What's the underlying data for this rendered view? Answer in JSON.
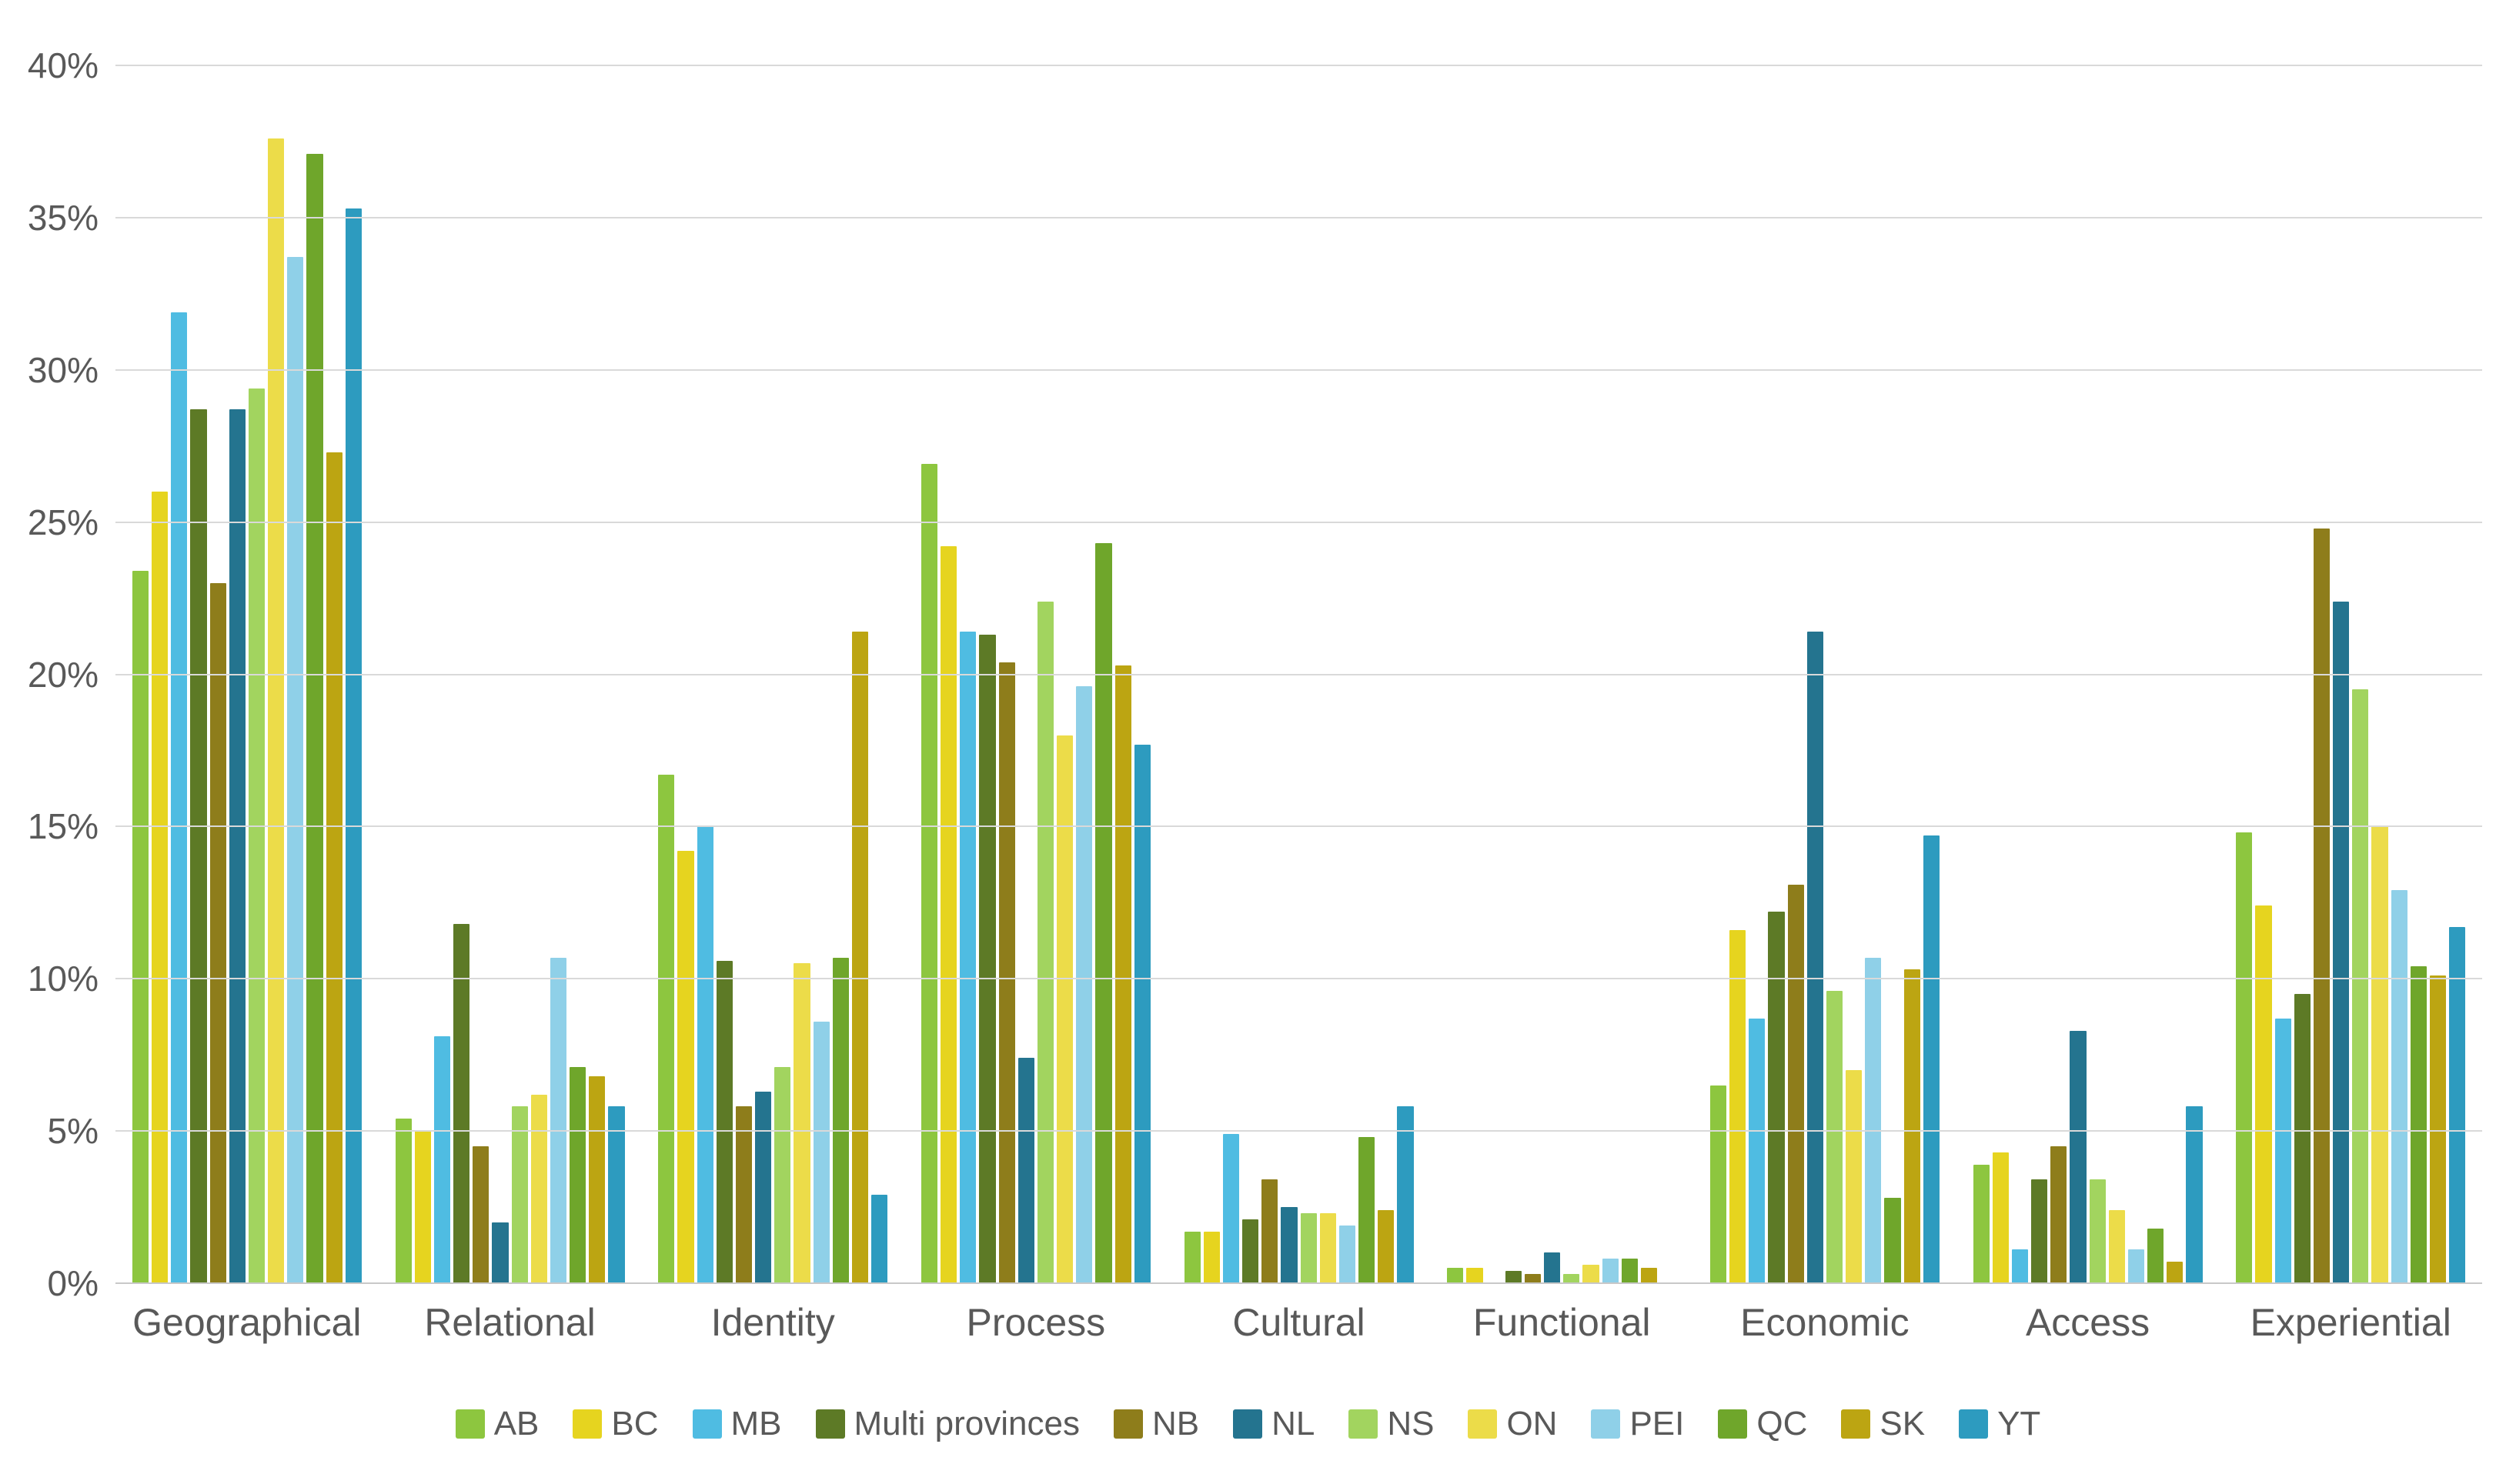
{
  "chart_data": {
    "type": "bar",
    "title": "",
    "xlabel": "",
    "ylabel": "",
    "ylim": [
      0,
      40
    ],
    "grid": true,
    "legend_position": "bottom",
    "y_ticks": [
      {
        "value": 0,
        "label": "0%"
      },
      {
        "value": 5,
        "label": "5%"
      },
      {
        "value": 10,
        "label": "10%"
      },
      {
        "value": 15,
        "label": "15%"
      },
      {
        "value": 20,
        "label": "20%"
      },
      {
        "value": 25,
        "label": "25%"
      },
      {
        "value": 30,
        "label": "30%"
      },
      {
        "value": 35,
        "label": "35%"
      },
      {
        "value": 40,
        "label": "40%"
      }
    ],
    "categories": [
      "Geographical",
      "Relational",
      "Identity",
      "Process",
      "Cultural",
      "Functional",
      "Economic",
      "Access",
      "Experiential"
    ],
    "series": [
      {
        "name": "AB",
        "color": "#8dc63f",
        "values": [
          23.4,
          5.4,
          16.7,
          26.9,
          1.7,
          0.5,
          6.5,
          3.9,
          14.8
        ]
      },
      {
        "name": "BC",
        "color": "#e6d41f",
        "values": [
          26.0,
          5.0,
          14.2,
          24.2,
          1.7,
          0.5,
          11.6,
          4.3,
          12.4
        ]
      },
      {
        "name": "MB",
        "color": "#4fbce2",
        "values": [
          31.9,
          8.1,
          15.0,
          21.4,
          4.9,
          0.0,
          8.7,
          1.1,
          8.7
        ]
      },
      {
        "name": "Multi provinces",
        "color": "#5d7a26",
        "values": [
          28.7,
          11.8,
          10.6,
          21.3,
          2.1,
          0.4,
          12.2,
          3.4,
          9.5
        ]
      },
      {
        "name": "NB",
        "color": "#8e7d1b",
        "values": [
          23.0,
          4.5,
          5.8,
          20.4,
          3.4,
          0.3,
          13.1,
          4.5,
          24.8
        ]
      },
      {
        "name": "NL",
        "color": "#24748f",
        "values": [
          28.7,
          2.0,
          6.3,
          7.4,
          2.5,
          1.0,
          21.4,
          8.3,
          22.4
        ]
      },
      {
        "name": "NS",
        "color": "#a2d45f",
        "values": [
          29.4,
          5.8,
          7.1,
          22.4,
          2.3,
          0.3,
          9.6,
          3.4,
          19.5
        ]
      },
      {
        "name": "ON",
        "color": "#ecdc49",
        "values": [
          37.6,
          6.2,
          10.5,
          18.0,
          2.3,
          0.6,
          7.0,
          2.4,
          15.0
        ]
      },
      {
        "name": "PEI",
        "color": "#8fd0e8",
        "values": [
          33.7,
          10.7,
          8.6,
          19.6,
          1.9,
          0.8,
          10.7,
          1.1,
          12.9
        ]
      },
      {
        "name": "QC",
        "color": "#6fa62b",
        "values": [
          37.1,
          7.1,
          10.7,
          24.3,
          4.8,
          0.8,
          2.8,
          1.8,
          10.4
        ]
      },
      {
        "name": "SK",
        "color": "#bca512",
        "values": [
          27.3,
          6.8,
          21.4,
          20.3,
          2.4,
          0.5,
          10.3,
          0.7,
          10.1
        ]
      },
      {
        "name": "YT",
        "color": "#2d9bbf",
        "values": [
          35.3,
          5.8,
          2.9,
          17.7,
          5.8,
          0.0,
          14.7,
          5.8,
          11.7
        ]
      }
    ]
  },
  "colors": {
    "gridline": "#d9d9d9",
    "axis_text": "#595959",
    "background": "#ffffff"
  }
}
